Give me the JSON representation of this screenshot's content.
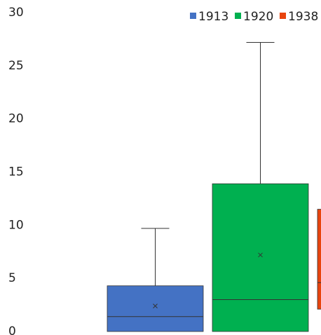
{
  "chart_data": {
    "type": "box",
    "ylim": [
      0,
      30
    ],
    "yticks": [
      0,
      5,
      10,
      15,
      20,
      25,
      30
    ],
    "series": [
      {
        "name": "1913",
        "color": "#4472c4",
        "min": 0,
        "q1": 0,
        "median": 1.4,
        "q3": 4.3,
        "max": 9.7,
        "mean": 2.4
      },
      {
        "name": "1920",
        "color": "#00b050",
        "min": 0,
        "q1": 0,
        "median": 3.0,
        "q3": 13.9,
        "max": 27.2,
        "mean": 7.2
      },
      {
        "name": "1938",
        "color": "#e8440e",
        "q1": 2.1,
        "median": 4.6,
        "q3": 11.5
      }
    ]
  }
}
